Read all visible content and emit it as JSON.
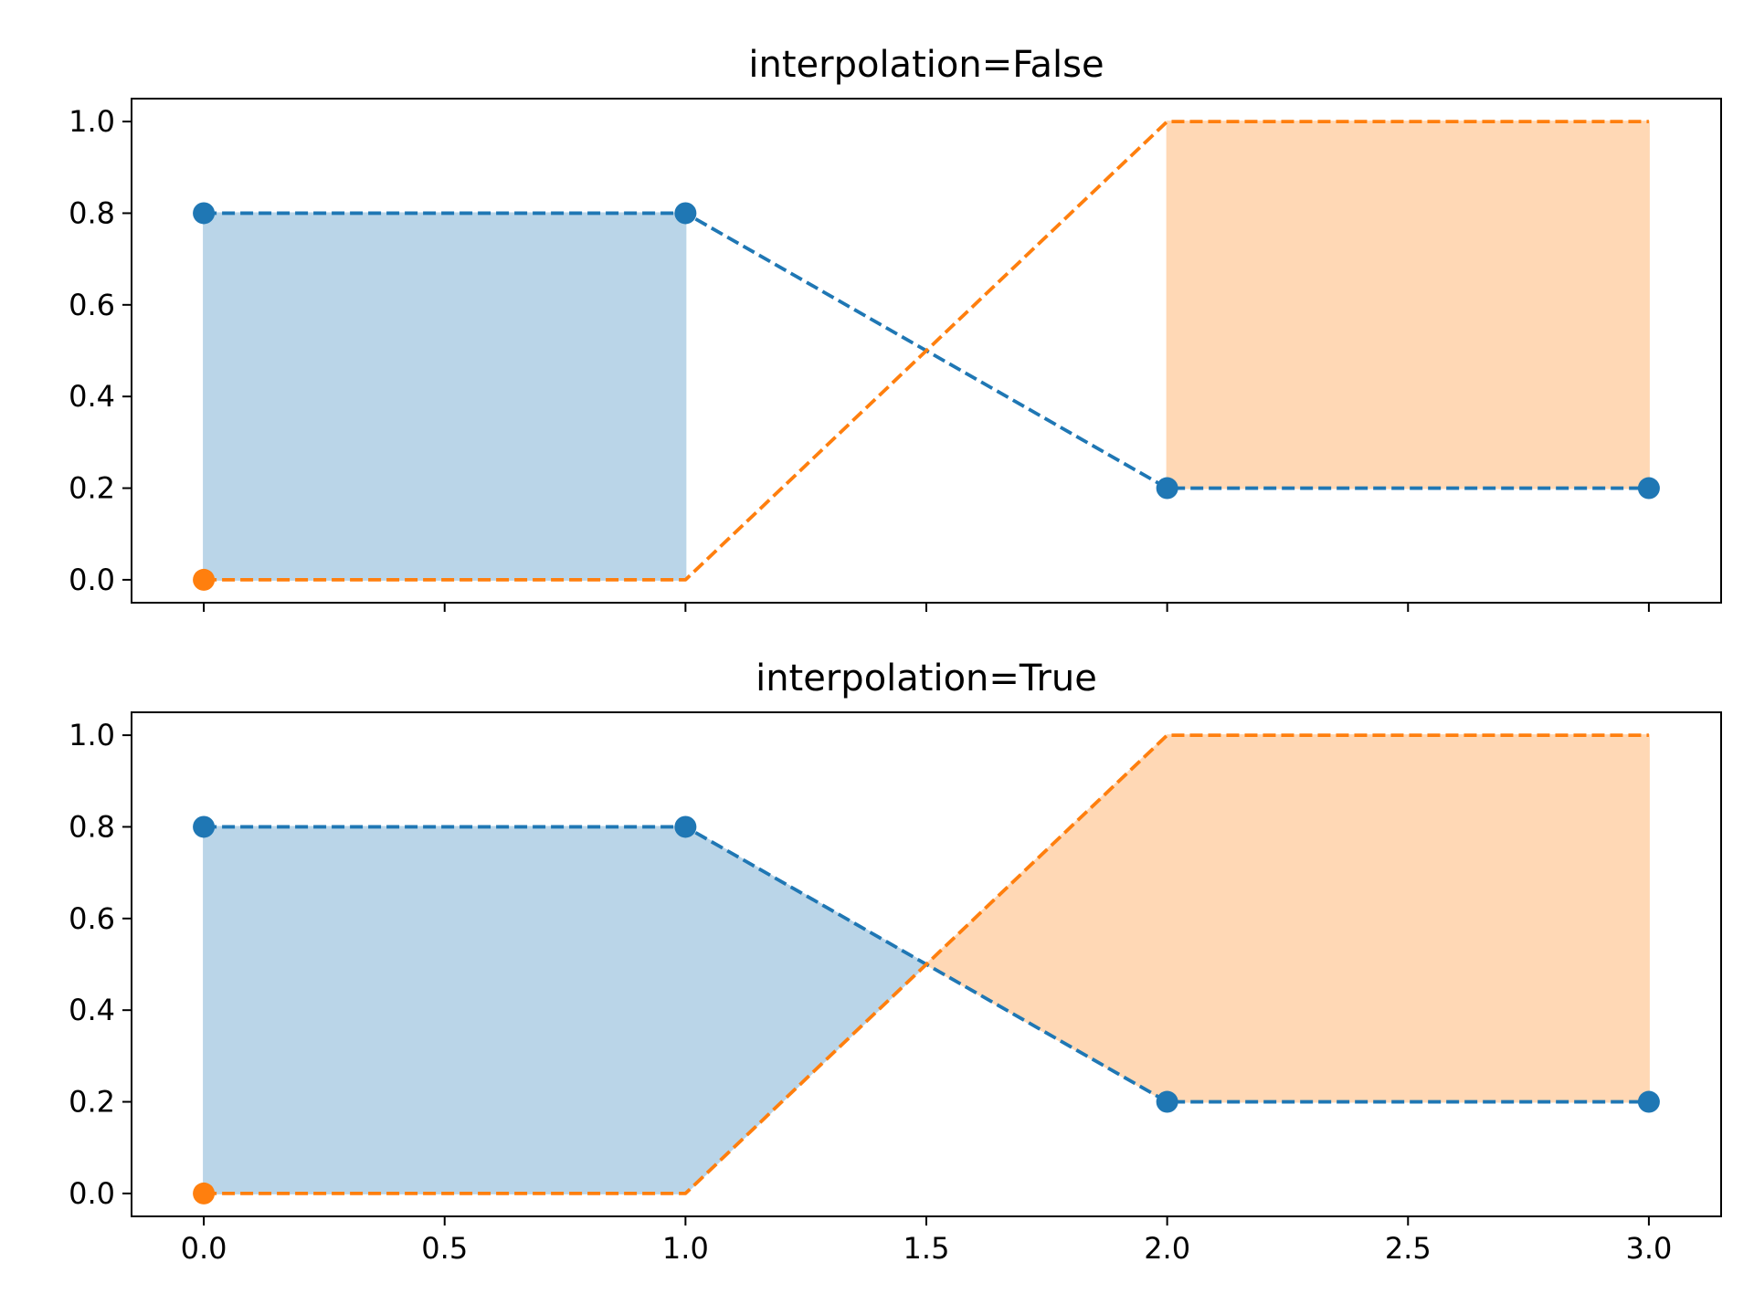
{
  "chart_data": [
    {
      "type": "area",
      "title": "interpolation=False",
      "xlabel": "",
      "ylabel": "",
      "xlim": [
        -0.15,
        3.15
      ],
      "ylim": [
        -0.05,
        1.05
      ],
      "xticks": [
        0.0,
        0.5,
        1.0,
        1.5,
        2.0,
        2.5,
        3.0
      ],
      "xtick_labels": [],
      "yticks": [
        0.0,
        0.2,
        0.4,
        0.6,
        0.8,
        1.0
      ],
      "ytick_labels": [
        "0.0",
        "0.2",
        "0.4",
        "0.6",
        "0.8",
        "1.0"
      ],
      "grid": false,
      "x": [
        0,
        1,
        2,
        3
      ],
      "series": [
        {
          "color": "#1f77b4",
          "values": [
            0.8,
            0.8,
            0.2,
            0.2
          ],
          "markers": true,
          "line_style": "dashed"
        },
        {
          "color": "#ff7f0e",
          "values": [
            0.0,
            0.0,
            1.0,
            1.0
          ],
          "markers": [
            true,
            false,
            false,
            false
          ],
          "line_style": "dashed"
        }
      ],
      "fill_between": {
        "interpolate": false,
        "where_first_greater_color": "#bad5e8",
        "where_second_greater_color": "#ffd8b5"
      }
    },
    {
      "type": "area",
      "title": "interpolation=True",
      "xlabel": "",
      "ylabel": "",
      "xlim": [
        -0.15,
        3.15
      ],
      "ylim": [
        -0.05,
        1.05
      ],
      "xticks": [
        0.0,
        0.5,
        1.0,
        1.5,
        2.0,
        2.5,
        3.0
      ],
      "xtick_labels": [
        "0.0",
        "0.5",
        "1.0",
        "1.5",
        "2.0",
        "2.5",
        "3.0"
      ],
      "yticks": [
        0.0,
        0.2,
        0.4,
        0.6,
        0.8,
        1.0
      ],
      "ytick_labels": [
        "0.0",
        "0.2",
        "0.4",
        "0.6",
        "0.8",
        "1.0"
      ],
      "grid": false,
      "x": [
        0,
        1,
        2,
        3
      ],
      "series": [
        {
          "color": "#1f77b4",
          "values": [
            0.8,
            0.8,
            0.2,
            0.2
          ],
          "markers": true,
          "line_style": "dashed"
        },
        {
          "color": "#ff7f0e",
          "values": [
            0.0,
            0.0,
            1.0,
            1.0
          ],
          "markers": [
            true,
            false,
            false,
            false
          ],
          "line_style": "dashed"
        }
      ],
      "fill_between": {
        "interpolate": true,
        "where_first_greater_color": "#bad5e8",
        "where_second_greater_color": "#ffd8b5"
      }
    }
  ]
}
